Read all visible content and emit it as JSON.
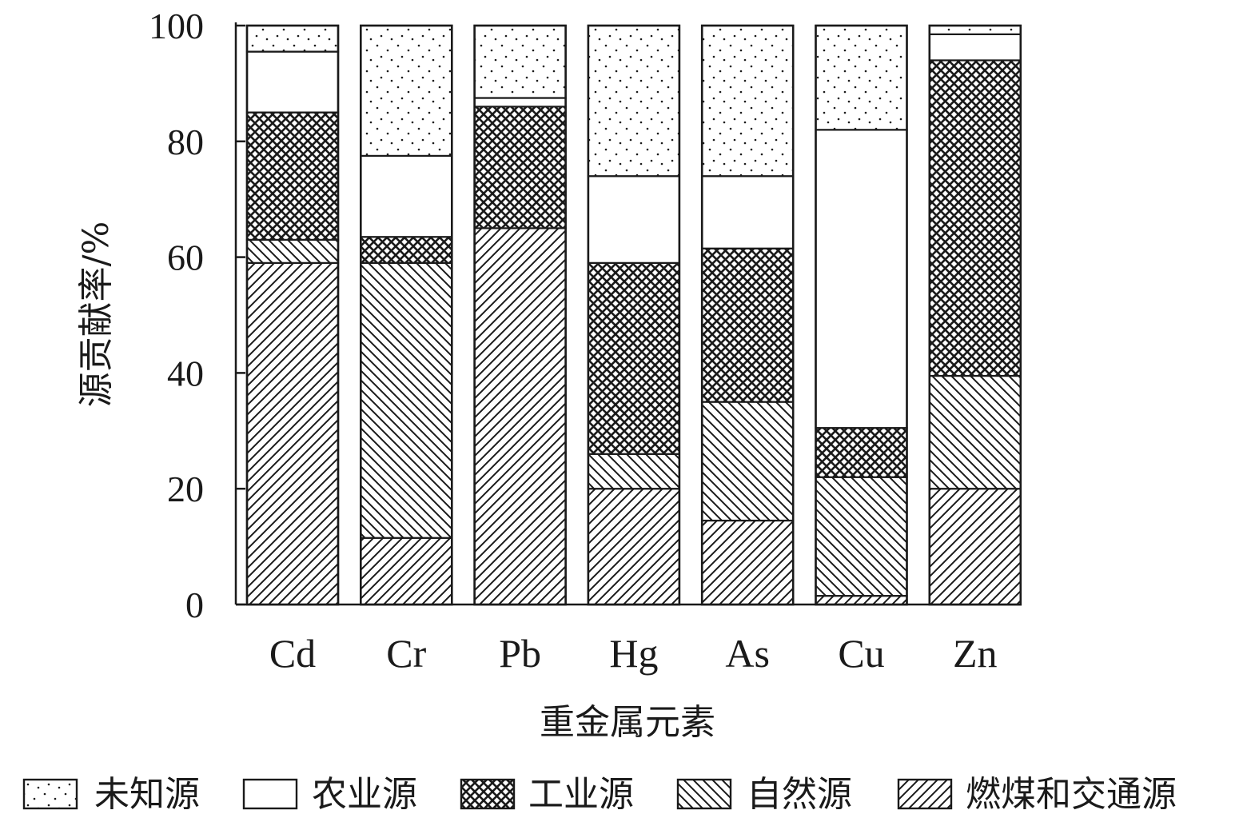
{
  "chart_data": {
    "type": "bar",
    "stacked": true,
    "categories": [
      "Cd",
      "Cr",
      "Pb",
      "Hg",
      "As",
      "Cu",
      "Zn"
    ],
    "xlabel": "重金属元素",
    "ylabel": "源贡献率/%",
    "ylim": [
      0,
      100
    ],
    "yticks": [
      0,
      20,
      40,
      60,
      80,
      100
    ],
    "grid": false,
    "legend_position": "bottom",
    "series": [
      {
        "name": "燃煤和交通源",
        "pattern": "hatch-forward",
        "values": [
          59.0,
          11.5,
          65.0,
          20.0,
          14.5,
          1.5,
          20.0
        ]
      },
      {
        "name": "自然源",
        "pattern": "hatch-back",
        "values": [
          4.0,
          47.5,
          0.0,
          6.0,
          20.5,
          20.5,
          19.5
        ]
      },
      {
        "name": "工业源",
        "pattern": "crosshatch",
        "values": [
          22.0,
          4.5,
          21.0,
          33.0,
          26.5,
          8.5,
          54.5
        ]
      },
      {
        "name": "农业源",
        "pattern": "blank",
        "values": [
          10.5,
          14.0,
          1.5,
          15.0,
          12.5,
          51.5,
          4.5
        ]
      },
      {
        "name": "未知源",
        "pattern": "dots",
        "values": [
          4.5,
          22.5,
          12.5,
          26.0,
          26.0,
          18.0,
          1.5
        ]
      }
    ],
    "legend_order": [
      "未知源",
      "农业源",
      "工业源",
      "自然源",
      "燃煤和交通源"
    ]
  }
}
